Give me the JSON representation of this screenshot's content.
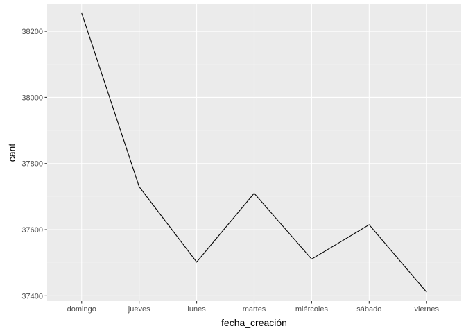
{
  "chart_data": {
    "type": "line",
    "categories": [
      "domingo",
      "jueves",
      "lunes",
      "martes",
      "miércoles",
      "sábado",
      "viernes"
    ],
    "values": [
      38255,
      37730,
      37502,
      37710,
      37511,
      37615,
      37411
    ],
    "xlabel": "fecha_creación",
    "ylabel": "cant",
    "ylim": [
      37384,
      38282
    ],
    "yticks": [
      37400,
      37600,
      37800,
      38000,
      38200
    ],
    "grid": true,
    "legend": "none",
    "colors": {
      "panel_background": "#ebebeb",
      "grid_major": "#ffffff",
      "grid_minor": "#f2f2f2",
      "line": "#000000",
      "tick_mark": "#333333",
      "tick_label": "#4d4d4d"
    }
  }
}
